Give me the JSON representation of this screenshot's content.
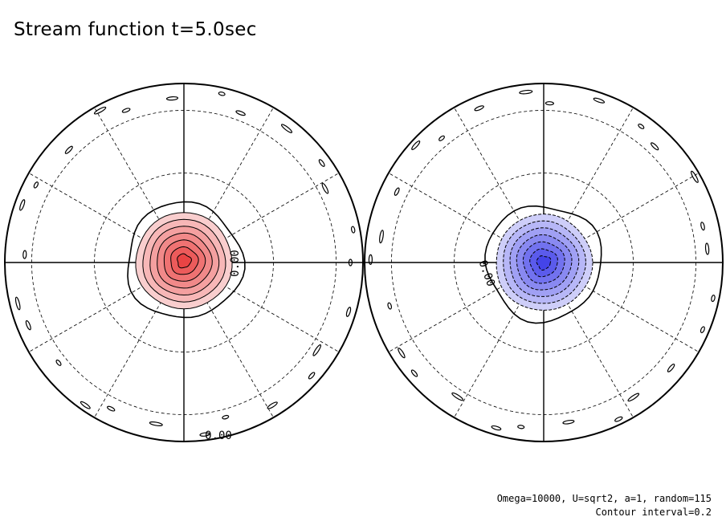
{
  "header": {
    "title": "Stream function t=5.0sec"
  },
  "footer": {
    "params": "Omega=10000, U=sqrt2, a=1, random=115",
    "interval": "Contour interval=0.2"
  },
  "chart_data": [
    {
      "type": "contour",
      "hemisphere": "left",
      "projection": "orthographic polar view",
      "contour_labels": [
        "0.00",
        "0.00"
      ],
      "extremum": {
        "sign": "positive",
        "color": "#e83a3a",
        "levels": [
          0.2,
          0.4,
          0.6,
          0.8,
          1.0,
          1.2,
          1.4
        ]
      },
      "zero_contour": true
    },
    {
      "type": "contour",
      "hemisphere": "right",
      "projection": "orthographic polar view",
      "contour_labels": [
        "0.00"
      ],
      "extremum": {
        "sign": "negative",
        "color": "#3a3ae8",
        "levels": [
          -0.2,
          -0.4,
          -0.6,
          -0.8,
          -1.0,
          -1.2,
          -1.4
        ]
      },
      "zero_contour": true
    }
  ],
  "contour_interval": 0.2
}
